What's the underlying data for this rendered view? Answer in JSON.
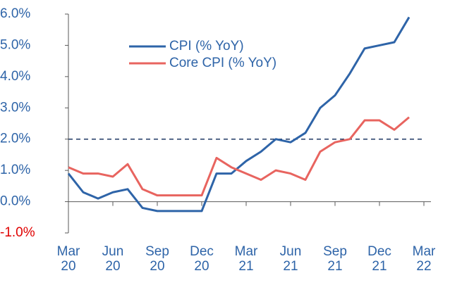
{
  "chart_data": {
    "type": "line",
    "categories": [
      "Mar 20",
      null,
      null,
      "Jun 20",
      null,
      null,
      "Sep 20",
      null,
      null,
      "Dec 20",
      null,
      null,
      "Mar 21",
      null,
      null,
      "Jun 21",
      null,
      null,
      "Sep 21",
      null,
      null,
      "Dec 21",
      null,
      null,
      "Mar 22"
    ],
    "series": [
      {
        "name": "CPI (% YoY)",
        "color": "#2e64a8",
        "values": [
          0.9,
          0.3,
          0.1,
          0.3,
          0.4,
          -0.2,
          -0.3,
          -0.3,
          -0.3,
          -0.3,
          0.9,
          0.9,
          1.3,
          1.6,
          2.0,
          1.9,
          2.2,
          3.0,
          3.4,
          4.1,
          4.9,
          5.0,
          5.1,
          5.9,
          null
        ]
      },
      {
        "name": "Core CPI (% YoY)",
        "color": "#e8645f",
        "values": [
          1.1,
          0.9,
          0.9,
          0.8,
          1.2,
          0.4,
          0.2,
          0.2,
          0.2,
          0.2,
          1.4,
          1.1,
          0.9,
          0.7,
          1.0,
          0.9,
          0.7,
          1.6,
          1.9,
          2.0,
          2.6,
          2.6,
          2.3,
          2.7,
          null
        ]
      }
    ],
    "ylim": [
      -1,
      6
    ],
    "yticks": [
      {
        "value": -1,
        "label": "-1.0%"
      },
      {
        "value": 0,
        "label": "0.0%"
      },
      {
        "value": 1,
        "label": "1.0%"
      },
      {
        "value": 2,
        "label": "2.0%"
      },
      {
        "value": 3,
        "label": "3.0%"
      },
      {
        "value": 4,
        "label": "4.0%"
      },
      {
        "value": 5,
        "label": "5.0%"
      },
      {
        "value": 6,
        "label": "6.0%"
      }
    ],
    "tick_color": "#2e64a8",
    "negative_tick_color": "#e00000",
    "reference_line": {
      "value": 2,
      "color": "#1f3864"
    },
    "grid": false
  }
}
